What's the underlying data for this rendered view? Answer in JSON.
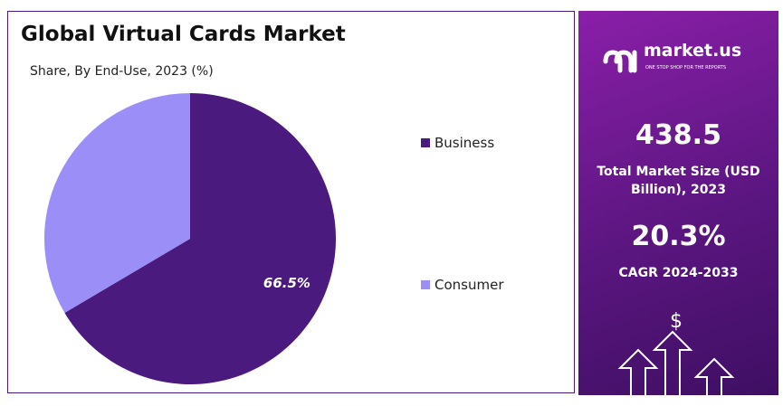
{
  "chart_data": {
    "type": "pie",
    "title": "Global Virtual Cards Market",
    "subtitle": "Share, By End-Use, 2023 (%)",
    "categories": [
      "Business",
      "Consumer"
    ],
    "values": [
      66.5,
      33.5
    ],
    "value_labels": [
      "66.5%",
      null
    ],
    "colors": [
      "#4a1a7e",
      "#9b8ef6"
    ],
    "legend": "right"
  },
  "panel": {
    "brand": "market.us",
    "tagline": "ONE STOP SHOP FOR THE REPORTS",
    "stat1_value": "438.5",
    "stat1_label": "Total Market Size (USD Billion), 2023",
    "stat2_value": "20.3%",
    "stat2_label": "CAGR 2024-2033"
  }
}
